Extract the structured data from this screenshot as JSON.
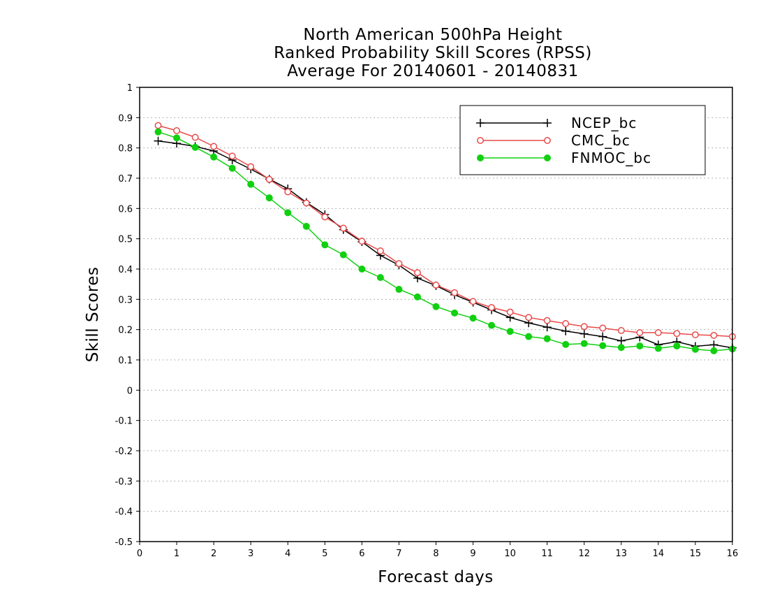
{
  "chart_data": {
    "type": "line",
    "title": [
      "North American 500hPa Height",
      "Ranked Probability Skill Scores (RPSS)",
      "Average For 20140601 - 20140831"
    ],
    "xlabel": "Forecast days",
    "ylabel": "Skill Scores",
    "xlim": [
      0,
      16
    ],
    "ylim": [
      -0.5,
      1
    ],
    "xticks": [
      "0",
      "1",
      "2",
      "3",
      "4",
      "5",
      "6",
      "7",
      "8",
      "9",
      "10",
      "11",
      "12",
      "13",
      "14",
      "15",
      "16"
    ],
    "yticks": [
      "1",
      "0.9",
      "0.8",
      "0.7",
      "0.6",
      "0.5",
      "0.4",
      "0.3",
      "0.2",
      "0.1",
      "0",
      "-0.1",
      "-0.2",
      "-0.3",
      "-0.4",
      "-0.5"
    ],
    "grid": "horizontal dotted",
    "legend_position": "top-right",
    "x": [
      0.5,
      1.0,
      1.5,
      2.0,
      2.5,
      3.0,
      3.5,
      4.0,
      4.5,
      5.0,
      5.5,
      6.0,
      6.5,
      7.0,
      7.5,
      8.0,
      8.5,
      9.0,
      9.5,
      10.0,
      10.5,
      11.0,
      11.5,
      12.0,
      12.5,
      13.0,
      13.5,
      14.0,
      14.5,
      15.0,
      15.5,
      16.0
    ],
    "series": [
      {
        "name": "NCEP_bc",
        "color": "#000000",
        "marker": "plus",
        "values": [
          0.823,
          0.815,
          0.805,
          0.79,
          0.76,
          0.73,
          0.697,
          0.665,
          0.62,
          0.58,
          0.53,
          0.49,
          0.445,
          0.413,
          0.37,
          0.345,
          0.315,
          0.29,
          0.265,
          0.24,
          0.222,
          0.208,
          0.195,
          0.186,
          0.177,
          0.163,
          0.175,
          0.15,
          0.16,
          0.145,
          0.15,
          0.14
        ]
      },
      {
        "name": "CMC_bc",
        "color": "#e84a4a",
        "marker": "open-circle",
        "values": [
          0.874,
          0.857,
          0.835,
          0.805,
          0.773,
          0.738,
          0.696,
          0.655,
          0.618,
          0.572,
          0.535,
          0.492,
          0.46,
          0.418,
          0.388,
          0.347,
          0.322,
          0.293,
          0.273,
          0.258,
          0.24,
          0.23,
          0.22,
          0.21,
          0.205,
          0.197,
          0.19,
          0.19,
          0.187,
          0.183,
          0.181,
          0.177
        ]
      },
      {
        "name": "FNMOC_bc",
        "color": "#10d010",
        "marker": "filled-circle",
        "values": [
          0.853,
          0.833,
          0.802,
          0.77,
          0.733,
          0.68,
          0.635,
          0.586,
          0.541,
          0.48,
          0.447,
          0.4,
          0.372,
          0.333,
          0.308,
          0.276,
          0.255,
          0.238,
          0.214,
          0.194,
          0.177,
          0.17,
          0.151,
          0.154,
          0.147,
          0.141,
          0.146,
          0.138,
          0.146,
          0.135,
          0.13,
          0.136
        ]
      }
    ]
  }
}
